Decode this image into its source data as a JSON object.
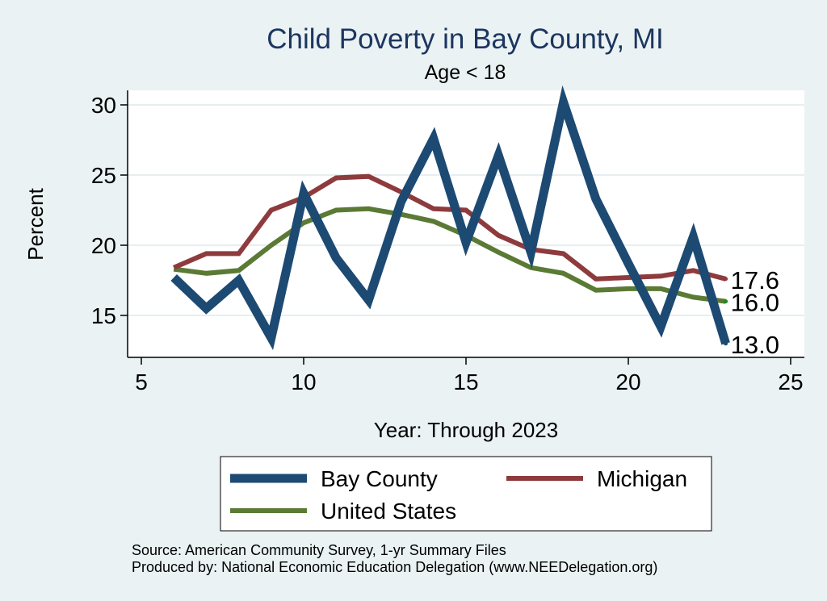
{
  "chart_data": {
    "type": "line",
    "title": "Child Poverty in Bay County, MI",
    "subtitle": "Age < 18",
    "xlabel": "Year: Through 2023",
    "ylabel": "Percent",
    "xlim": [
      5,
      25
    ],
    "ylim": [
      12.7,
      31
    ],
    "xticks": [
      5,
      10,
      15,
      20,
      25
    ],
    "yticks": [
      15,
      20,
      25,
      30
    ],
    "grid": true,
    "legend_position": "bottom",
    "series": [
      {
        "name": "Bay County",
        "color": "#1c4a73",
        "x": [
          6,
          7,
          8,
          9,
          10,
          11,
          12,
          13,
          14,
          15,
          16,
          17,
          18,
          19,
          20,
          21,
          22,
          23
        ],
        "values": [
          17.7,
          15.5,
          17.5,
          13.4,
          23.7,
          19.1,
          16.1,
          23.1,
          27.6,
          20.2,
          26.4,
          19.5,
          30.2,
          23.3,
          18.7,
          14.2,
          20.6,
          13.0
        ],
        "end_label": "13.0"
      },
      {
        "name": "Michigan",
        "color": "#8e3b3e",
        "x": [
          6,
          7,
          8,
          9,
          10,
          11,
          12,
          13,
          14,
          15,
          16,
          17,
          18,
          19,
          20,
          21,
          22,
          23
        ],
        "values": [
          18.4,
          19.4,
          19.4,
          22.5,
          23.4,
          24.8,
          24.9,
          23.8,
          22.6,
          22.5,
          20.7,
          19.7,
          19.4,
          17.6,
          17.7,
          17.8,
          18.2,
          17.6
        ],
        "end_label": "17.6"
      },
      {
        "name": "United States",
        "color": "#5b7a35",
        "x": [
          6,
          7,
          8,
          9,
          10,
          11,
          12,
          13,
          14,
          15,
          16,
          17,
          18,
          19,
          20,
          21,
          22,
          23
        ],
        "values": [
          18.3,
          18.0,
          18.2,
          20.0,
          21.6,
          22.5,
          22.6,
          22.2,
          21.7,
          20.7,
          19.5,
          18.4,
          18.0,
          16.8,
          16.9,
          16.9,
          16.3,
          16.0
        ],
        "end_label": "16.0"
      }
    ],
    "notes": [
      "Source: American Community Survey, 1-yr Summary Files",
      "Produced by: National Economic Education Delegation (www.NEEDelegation.org)"
    ]
  }
}
